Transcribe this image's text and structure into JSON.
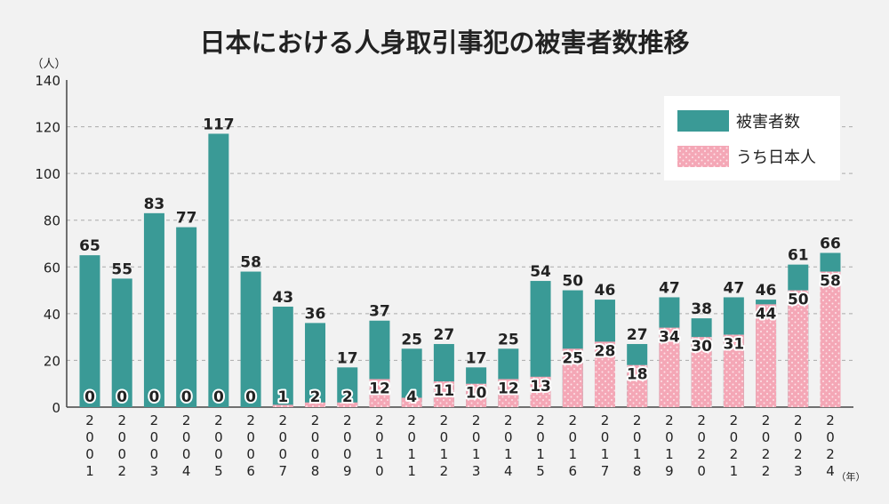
{
  "chart_data": {
    "type": "bar",
    "title": "日本における人身取引事犯の被害者数推移",
    "ylabel": "（人）",
    "xlabel": "（年）",
    "ylim": [
      0,
      140
    ],
    "yticks": [
      0,
      20,
      40,
      60,
      80,
      100,
      120,
      140
    ],
    "grid": true,
    "legend_position": "top-right",
    "categories": [
      "2001",
      "2002",
      "2003",
      "2004",
      "2005",
      "2006",
      "2007",
      "2008",
      "2009",
      "2010",
      "2011",
      "2012",
      "2013",
      "2014",
      "2015",
      "2016",
      "2017",
      "2018",
      "2019",
      "2020",
      "2021",
      "2022",
      "2023",
      "2024"
    ],
    "series": [
      {
        "name": "被害者数",
        "color": "#3a9a96",
        "values": [
          65,
          55,
          83,
          77,
          117,
          58,
          43,
          36,
          17,
          37,
          25,
          27,
          17,
          25,
          54,
          50,
          46,
          27,
          47,
          38,
          47,
          46,
          61,
          66
        ]
      },
      {
        "name": "うち日本人",
        "color": "#f4a7b6",
        "values": [
          0,
          0,
          0,
          0,
          0,
          0,
          1,
          2,
          2,
          12,
          4,
          11,
          10,
          12,
          13,
          25,
          28,
          18,
          34,
          30,
          31,
          44,
          50,
          58
        ]
      }
    ]
  }
}
